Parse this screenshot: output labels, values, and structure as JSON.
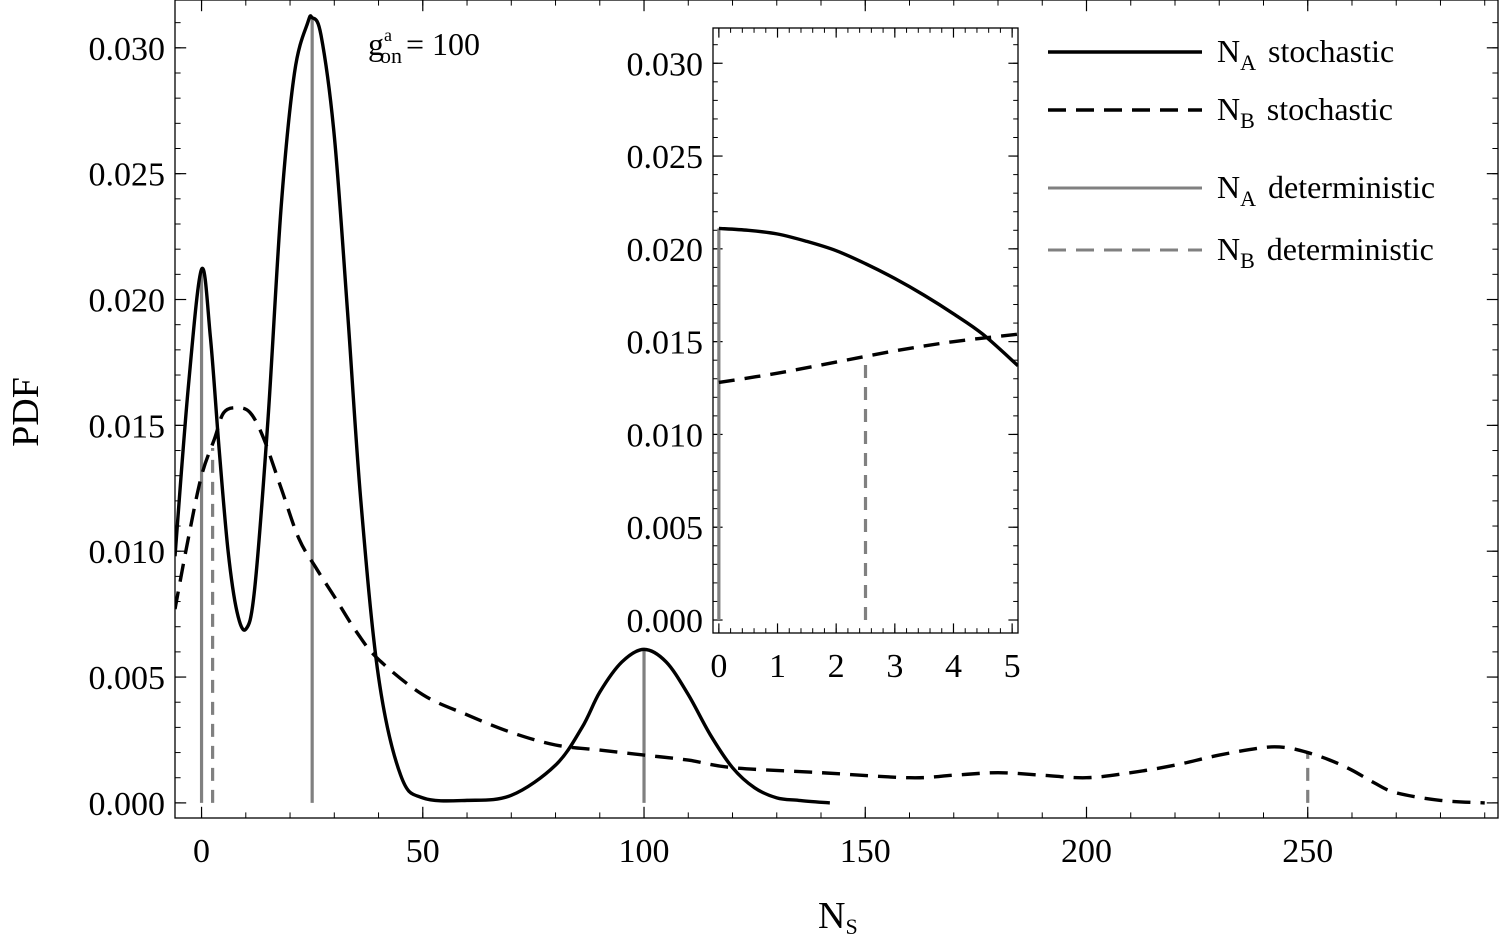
{
  "chart_data": [
    {
      "type": "line",
      "id": "main",
      "title": "",
      "xlabel": "N",
      "xlabel_sub": "S",
      "ylabel": "PDF",
      "xlim": [
        -6,
        293
      ],
      "ylim": [
        -0.0006,
        0.0319
      ],
      "xticks": [
        0,
        50,
        100,
        150,
        200,
        250
      ],
      "xtick_labels": [
        "0",
        "50",
        "100",
        "150",
        "200",
        "250"
      ],
      "yticks": [
        0,
        0.005,
        0.01,
        0.015,
        0.02,
        0.025,
        0.03
      ],
      "ytick_labels": [
        "0.000",
        "0.005",
        "0.010",
        "0.015",
        "0.020",
        "0.025",
        "0.030"
      ],
      "annotation": {
        "base": "g",
        "sup": "a",
        "sub": "on",
        "text": "= 100"
      },
      "series": [
        {
          "name": "NA stochastic",
          "style": "solid",
          "color": "#000000",
          "x": [
            -6,
            -3,
            0,
            2,
            4,
            6,
            8,
            10,
            12,
            15,
            18,
            21,
            24,
            25,
            27,
            30,
            33,
            36,
            40,
            45,
            50,
            60,
            70,
            80,
            86,
            90,
            95,
            100,
            105,
            110,
            115,
            120,
            125,
            130,
            135,
            142
          ],
          "y": [
            0.0098,
            0.0165,
            0.0212,
            0.0185,
            0.014,
            0.01,
            0.0076,
            0.0069,
            0.0085,
            0.0152,
            0.0237,
            0.029,
            0.031,
            0.0312,
            0.0305,
            0.0265,
            0.0195,
            0.012,
            0.005,
            0.0011,
            0.0002,
            0.0001,
            0.0003,
            0.0015,
            0.003,
            0.0044,
            0.0056,
            0.0061,
            0.0056,
            0.0043,
            0.0027,
            0.0014,
            0.0006,
            0.0002,
            0.0001,
            0.0
          ]
        },
        {
          "name": "NB stochastic",
          "style": "dashed",
          "color": "#000000",
          "x": [
            -6,
            -3,
            0,
            3,
            5,
            8,
            11,
            14,
            18,
            22,
            26,
            30,
            35,
            40,
            50,
            60,
            70,
            80,
            90,
            100,
            110,
            120,
            140,
            160,
            170,
            180,
            190,
            200,
            210,
            220,
            230,
            240,
            245,
            250,
            255,
            260,
            265,
            270,
            280,
            290
          ],
          "y": [
            0.0077,
            0.0105,
            0.013,
            0.0145,
            0.0155,
            0.0157,
            0.0155,
            0.0145,
            0.0125,
            0.0105,
            0.0093,
            0.0082,
            0.0068,
            0.0057,
            0.0043,
            0.0035,
            0.0028,
            0.0023,
            0.0021,
            0.0019,
            0.0017,
            0.0014,
            0.0012,
            0.001,
            0.0011,
            0.0012,
            0.0011,
            0.001,
            0.0012,
            0.0015,
            0.0019,
            0.0022,
            0.0022,
            0.002,
            0.0017,
            0.0013,
            0.0008,
            0.0004,
            0.0001,
            0.0
          ]
        }
      ],
      "deterministic": [
        {
          "name": "NA deterministic",
          "style": "solid",
          "color": "#808080",
          "x": 0,
          "y": 0.0212
        },
        {
          "name": "NA deterministic",
          "style": "solid",
          "color": "#808080",
          "x": 25,
          "y": 0.0312
        },
        {
          "name": "NA deterministic",
          "style": "solid",
          "color": "#808080",
          "x": 100,
          "y": 0.0061
        },
        {
          "name": "NB deterministic",
          "style": "dashed",
          "color": "#808080",
          "x": 2.5,
          "y": 0.0141
        },
        {
          "name": "NB deterministic",
          "style": "dashed",
          "color": "#808080",
          "x": 250,
          "y": 0.002
        }
      ]
    },
    {
      "type": "line",
      "id": "inset",
      "title": "",
      "xlabel": "",
      "ylabel": "",
      "xlim": [
        -0.1,
        5.1
      ],
      "ylim": [
        -0.0007,
        0.0319
      ],
      "xticks": [
        0,
        1,
        2,
        3,
        4,
        5
      ],
      "xtick_labels": [
        "0",
        "1",
        "2",
        "3",
        "4",
        "5"
      ],
      "yticks": [
        0,
        0.005,
        0.01,
        0.015,
        0.02,
        0.025,
        0.03
      ],
      "ytick_labels": [
        "0.000",
        "0.005",
        "0.010",
        "0.015",
        "0.020",
        "0.025",
        "0.030"
      ],
      "series": [
        {
          "name": "NA stochastic",
          "style": "solid",
          "color": "#000000",
          "x": [
            0,
            0.5,
            1,
            1.5,
            2,
            2.5,
            3,
            3.5,
            4,
            4.5,
            5.1
          ],
          "y": [
            0.0211,
            0.021,
            0.0208,
            0.0204,
            0.0199,
            0.0192,
            0.0184,
            0.0175,
            0.0165,
            0.0154,
            0.0137
          ]
        },
        {
          "name": "NB stochastic",
          "style": "dashed",
          "color": "#000000",
          "x": [
            0,
            1,
            2,
            3,
            4,
            5.1
          ],
          "y": [
            0.0128,
            0.0133,
            0.0139,
            0.0145,
            0.015,
            0.0154
          ]
        }
      ],
      "deterministic": [
        {
          "name": "NA deterministic",
          "style": "solid",
          "color": "#808080",
          "x": 0,
          "y": 0.0211
        },
        {
          "name": "NB deterministic",
          "style": "dashed",
          "color": "#808080",
          "x": 2.5,
          "y": 0.0142
        }
      ]
    }
  ],
  "legend": {
    "placement": "top-right",
    "items": [
      {
        "symbol": "N",
        "sub": "A",
        "label": "stochastic",
        "style": "solid",
        "color": "#000000"
      },
      {
        "symbol": "N",
        "sub": "B",
        "label": "stochastic",
        "style": "dashed",
        "color": "#000000"
      },
      {
        "symbol": "N",
        "sub": "A",
        "label": "deterministic",
        "style": "solid",
        "color": "#808080"
      },
      {
        "symbol": "N",
        "sub": "B",
        "label": "deterministic",
        "style": "dashed",
        "color": "#808080"
      }
    ]
  }
}
